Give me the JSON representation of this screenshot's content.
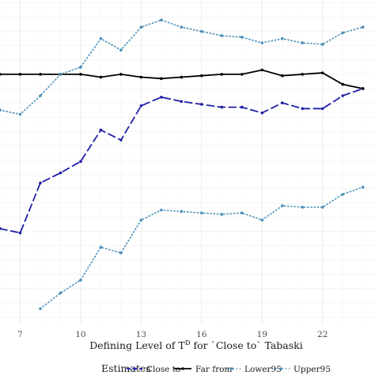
{
  "chart_data": {
    "type": "line",
    "title": "",
    "xlabel": "Defining Level of T^D for `Close to` Tabaski",
    "xlabel_parts": {
      "before": "Defining Level of T",
      "superscript": "D",
      "after": " for `Close to` Tabaski"
    },
    "ylabel": "",
    "xlim": [
      6,
      24.6
    ],
    "ylim": [
      -1.55,
      0.72
    ],
    "x_ticks": [
      7,
      10,
      13,
      16,
      19,
      22
    ],
    "x_tick_labels": [
      "7",
      "10",
      "13",
      "16",
      "19",
      "22"
    ],
    "grid": true,
    "legend": {
      "position": "bottom",
      "title": "Estimates",
      "entries": [
        "Close to",
        "Far from",
        "Lower95",
        "Upper95"
      ]
    },
    "series": [
      {
        "name": "Close to",
        "color": "#1f1fa8",
        "style": "dashed",
        "x": [
          6,
          7,
          8,
          9,
          10,
          11,
          12,
          13,
          14,
          15,
          16,
          17,
          18,
          19,
          20,
          21,
          22,
          23,
          24
        ],
        "y": [
          -0.88,
          -0.91,
          -0.56,
          -0.49,
          -0.41,
          -0.19,
          -0.26,
          -0.02,
          0.04,
          0.01,
          -0.01,
          -0.03,
          -0.03,
          -0.07,
          0.0,
          -0.04,
          -0.04,
          0.05,
          0.1
        ]
      },
      {
        "name": "Far from",
        "color": "#000000",
        "style": "solid",
        "x": [
          6,
          7,
          8,
          9,
          10,
          11,
          12,
          13,
          14,
          15,
          16,
          17,
          18,
          19,
          20,
          21,
          22,
          23,
          24
        ],
        "y": [
          0.2,
          0.2,
          0.2,
          0.2,
          0.2,
          0.18,
          0.2,
          0.18,
          0.17,
          0.18,
          0.19,
          0.2,
          0.2,
          0.23,
          0.19,
          0.2,
          0.21,
          0.13,
          0.1
        ]
      },
      {
        "name": "Lower95",
        "color": "#4a8fb8",
        "style": "dotted",
        "x": [
          8,
          9,
          10,
          11,
          12,
          13,
          14,
          15,
          16,
          17,
          18,
          19,
          20,
          21,
          22,
          23,
          24
        ],
        "y": [
          -1.44,
          -1.33,
          -1.24,
          -1.01,
          -1.05,
          -0.82,
          -0.75,
          -0.76,
          -0.77,
          -0.78,
          -0.77,
          -0.82,
          -0.72,
          -0.73,
          -0.73,
          -0.64,
          -0.59
        ]
      },
      {
        "name": "Upper95",
        "color": "#4a8fb8",
        "style": "dotted",
        "x": [
          6,
          7,
          8,
          9,
          10,
          11,
          12,
          13,
          14,
          15,
          16,
          17,
          18,
          19,
          20,
          21,
          22,
          23,
          24
        ],
        "y": [
          -0.05,
          -0.08,
          0.05,
          0.2,
          0.25,
          0.45,
          0.37,
          0.53,
          0.58,
          0.53,
          0.5,
          0.47,
          0.46,
          0.42,
          0.45,
          0.42,
          0.41,
          0.49,
          0.53
        ]
      }
    ]
  }
}
